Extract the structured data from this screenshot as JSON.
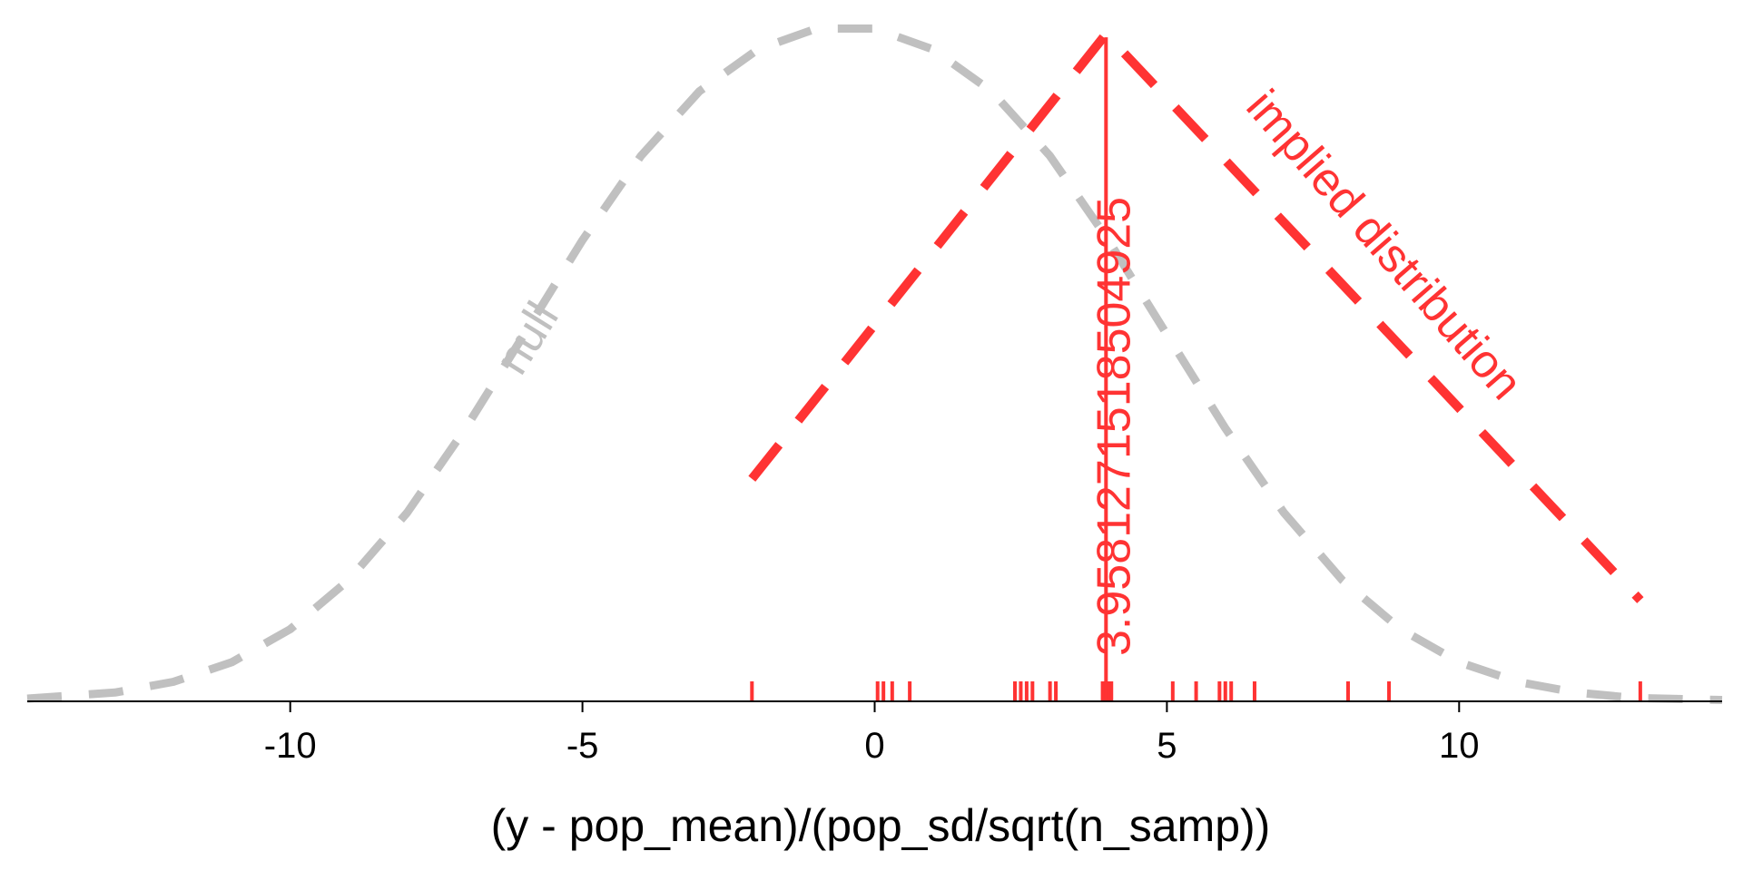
{
  "chart_data": {
    "type": "line",
    "title": "",
    "xlabel": "(y - pop_mean)/(pop_sd/sqrt(n_samp))",
    "ylabel": "",
    "xlim": [
      -14.5,
      14.5
    ],
    "ylim": [
      0,
      1.0
    ],
    "grid": false,
    "x_ticks": [
      -10,
      -5,
      0,
      5,
      10
    ],
    "x_tick_labels": [
      "-10",
      "-5",
      "0",
      "5",
      "10"
    ],
    "colors": {
      "null": "#c0c0c0",
      "implied": "#ff3333",
      "axis": "#000000"
    },
    "series": [
      {
        "name": "null",
        "style": "dashed",
        "x": [
          -14.5,
          -13,
          -12,
          -11,
          -10,
          -9,
          -8,
          -7,
          -6,
          -5,
          -4,
          -3,
          -2,
          -1,
          0,
          1,
          2,
          3,
          4,
          5,
          6,
          7,
          8,
          9,
          10,
          11,
          12,
          13,
          14.5
        ],
        "y": [
          0.004,
          0.013,
          0.029,
          0.058,
          0.107,
          0.18,
          0.28,
          0.405,
          0.544,
          0.684,
          0.809,
          0.905,
          0.967,
          0.998,
          0.998,
          0.967,
          0.905,
          0.809,
          0.684,
          0.544,
          0.405,
          0.28,
          0.18,
          0.107,
          0.058,
          0.029,
          0.013,
          0.005,
          0.002
        ]
      },
      {
        "name": "implied distribution",
        "style": "dashed",
        "x": [
          -2.1,
          3.96,
          13.1
        ],
        "y": [
          0.33,
          0.99,
          0.15
        ]
      }
    ],
    "rug": [
      -2.1,
      0.05,
      0.15,
      0.3,
      0.6,
      2.4,
      2.5,
      2.6,
      2.7,
      3.0,
      3.1,
      3.9,
      4.0,
      4.05,
      5.1,
      5.5,
      5.9,
      6.0,
      6.1,
      6.5,
      8.1,
      8.8,
      13.1
    ],
    "vline": {
      "x": 3.9581271518504924,
      "label": "3.9581271518504925"
    },
    "annotations": [
      {
        "text": "null",
        "series": "null"
      },
      {
        "text": "implied distribution",
        "series": "implied distribution"
      }
    ]
  }
}
